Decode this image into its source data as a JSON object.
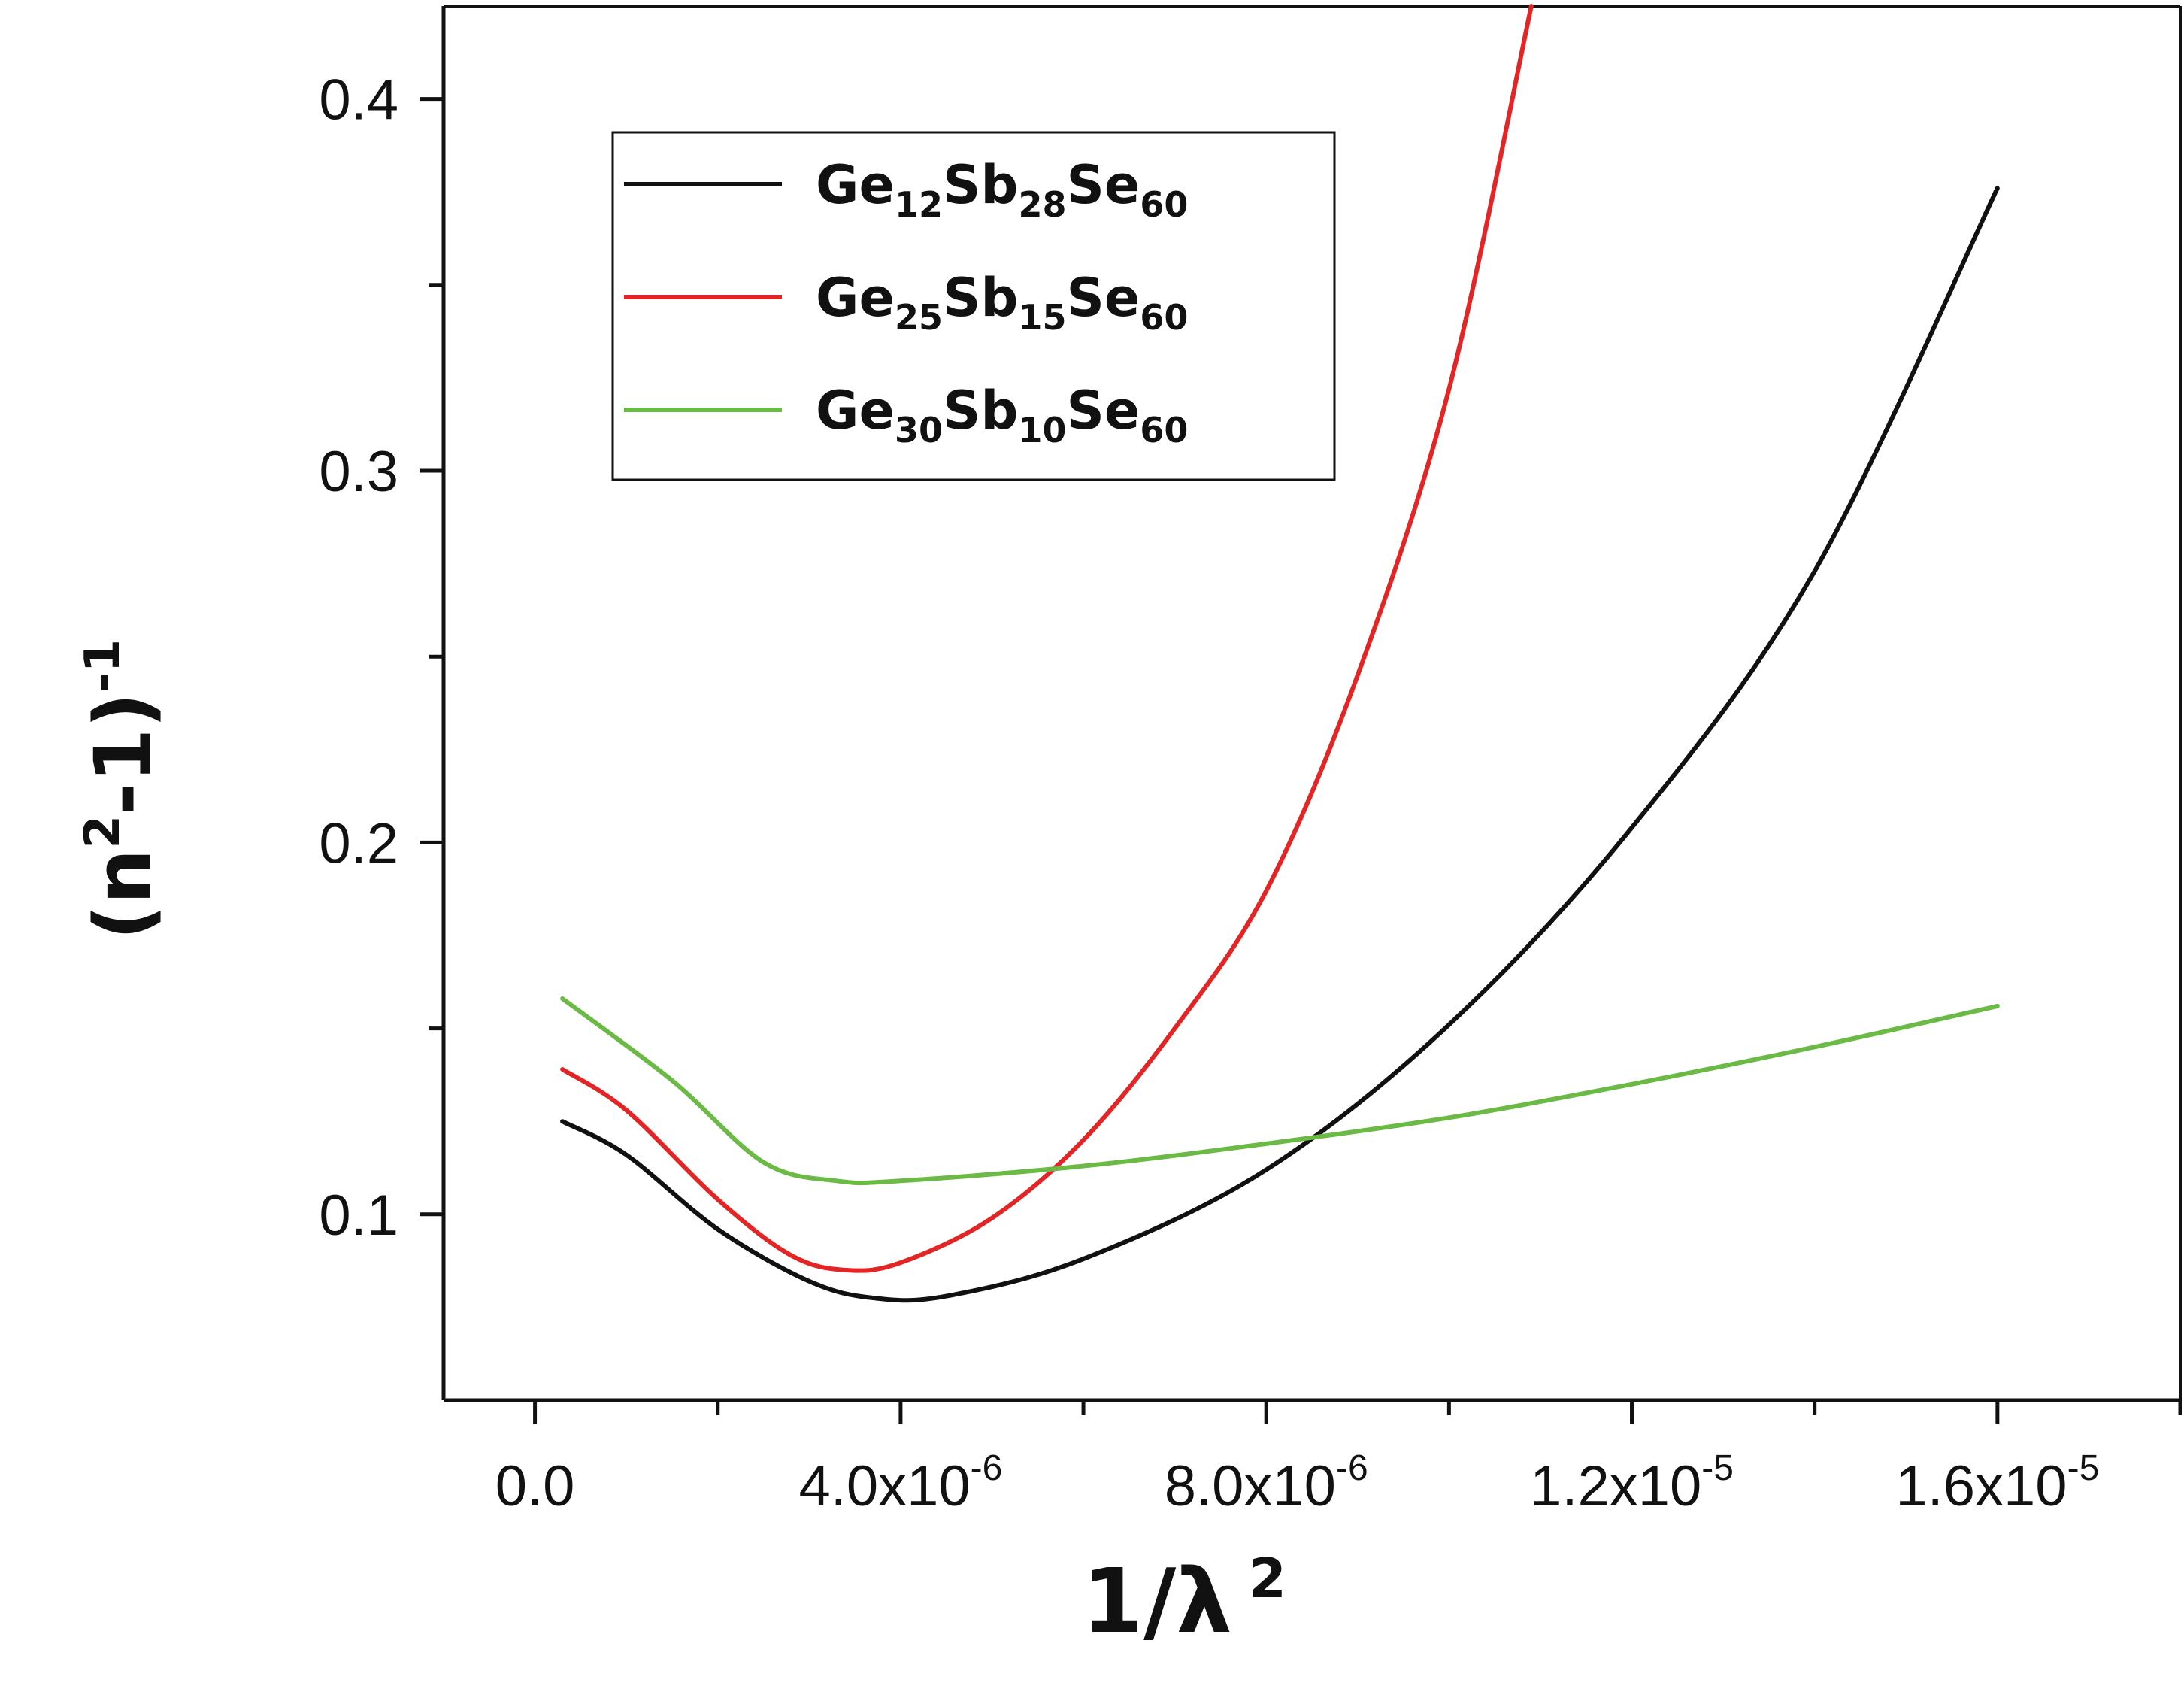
{
  "chart_data": {
    "type": "line",
    "title": "",
    "xlabel": {
      "base": "1/λ",
      "sup": "2"
    },
    "ylabel": {
      "pre": "(n",
      "sup1": "2",
      "mid": "-1)",
      "sup2": "-1"
    },
    "xlim": [
      -1e-06,
      1.8e-05
    ],
    "ylim": [
      0.05,
      0.425
    ],
    "x_ticks": [
      {
        "value": 0.0,
        "label": "0.0",
        "exp": ""
      },
      {
        "value": 4e-06,
        "label": "4.0x10",
        "exp": "-6"
      },
      {
        "value": 8e-06,
        "label": "8.0x10",
        "exp": "-6"
      },
      {
        "value": 1.2e-05,
        "label": "1.2x10",
        "exp": "-5"
      },
      {
        "value": 1.6e-05,
        "label": "1.6x10",
        "exp": "-5"
      }
    ],
    "x_minor_ticks": [
      2e-06,
      6e-06,
      1e-05,
      1.4e-05,
      1.8e-05
    ],
    "y_ticks": [
      {
        "value": 0.1,
        "label": "0.1"
      },
      {
        "value": 0.2,
        "label": "0.2"
      },
      {
        "value": 0.3,
        "label": "0.3"
      },
      {
        "value": 0.4,
        "label": "0.4"
      }
    ],
    "y_minor_ticks": [
      0.15,
      0.25,
      0.35
    ],
    "grid": false,
    "legend_position": "top-left",
    "series": [
      {
        "name": {
          "e1": "Ge",
          "s1": "12",
          "e2": "Sb",
          "s2": "28",
          "e3": "Se",
          "s3": "60"
        },
        "color": "#111111",
        "x": [
          3e-07,
          1e-06,
          2e-06,
          3e-06,
          3.7e-06,
          4.5e-06,
          6e-06,
          8e-06,
          1e-05,
          1.2e-05,
          1.4e-05,
          1.6e-05
        ],
        "y": [
          0.125,
          0.116,
          0.096,
          0.082,
          0.0775,
          0.078,
          0.088,
          0.112,
          0.151,
          0.204,
          0.273,
          0.376
        ]
      },
      {
        "name": {
          "e1": "Ge",
          "s1": "25",
          "e2": "Sb",
          "s2": "15",
          "e3": "Se",
          "s3": "60"
        },
        "color": "#e32526",
        "x": [
          3e-07,
          1e-06,
          2e-06,
          2.8e-06,
          3.4e-06,
          4e-06,
          5e-06,
          6e-06,
          7e-06,
          8e-06,
          9e-06,
          1e-05,
          1.09e-05
        ],
        "y": [
          0.139,
          0.128,
          0.104,
          0.089,
          0.085,
          0.087,
          0.099,
          0.12,
          0.15,
          0.187,
          0.245,
          0.322,
          0.425
        ]
      },
      {
        "name": {
          "e1": "Ge",
          "s1": "30",
          "e2": "Sb",
          "s2": "10",
          "e3": "Se",
          "s3": "60"
        },
        "color": "#6aba45",
        "x": [
          3e-07,
          1.5e-06,
          2.5e-06,
          3.3e-06,
          4e-06,
          6e-06,
          8e-06,
          1e-05,
          1.2e-05,
          1.4e-05,
          1.6e-05
        ],
        "y": [
          0.158,
          0.136,
          0.114,
          0.109,
          0.109,
          0.113,
          0.119,
          0.126,
          0.135,
          0.145,
          0.156
        ]
      }
    ]
  }
}
